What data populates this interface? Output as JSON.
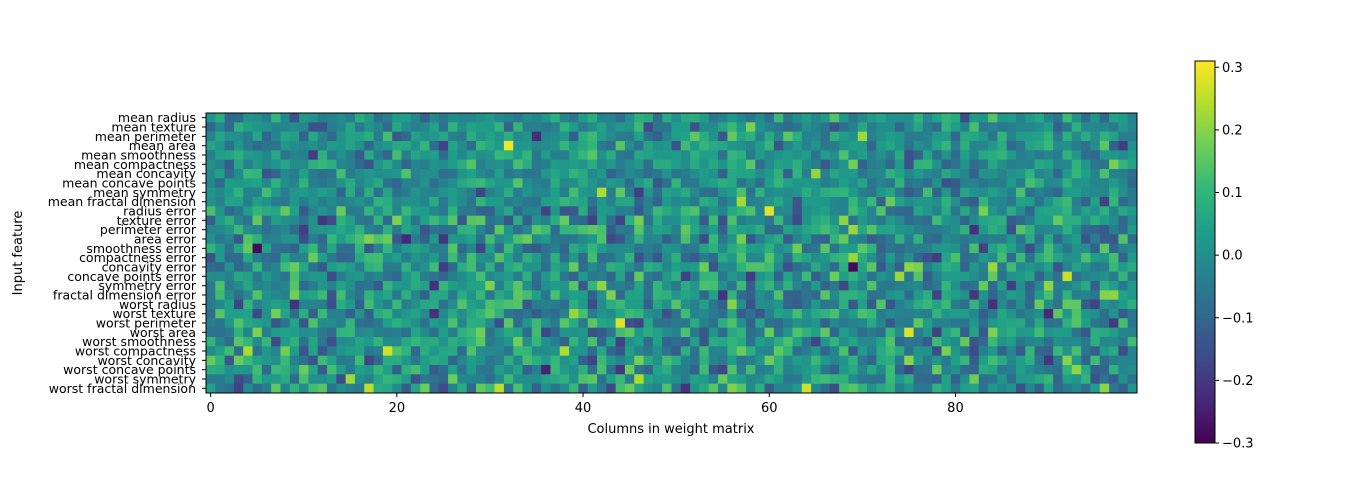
{
  "chart_data": {
    "type": "heatmap",
    "title": "",
    "xlabel": "Columns in weight matrix",
    "ylabel": "Input feature",
    "rows": [
      "mean radius",
      "mean texture",
      "mean perimeter",
      "mean area",
      "mean smoothness",
      "mean compactness",
      "mean concavity",
      "mean concave points",
      "mean symmetry",
      "mean fractal dimension",
      "radius error",
      "texture error",
      "perimeter error",
      "area error",
      "smoothness error",
      "compactness error",
      "concavity error",
      "concave points error",
      "symmetry error",
      "fractal dimension error",
      "worst radius",
      "worst texture",
      "worst perimeter",
      "worst area",
      "worst smoothness",
      "worst compactness",
      "worst concavity",
      "worst concave points",
      "worst symmetry",
      "worst fractal dimension"
    ],
    "n_columns": 100,
    "x_ticks": [
      0,
      20,
      40,
      60,
      80
    ],
    "x_tick_labels": [
      "0",
      "20",
      "40",
      "60",
      "80"
    ],
    "colormap": "viridis",
    "colorbar": {
      "vmin": -0.3,
      "vmax": 0.31,
      "ticks": [
        -0.3,
        -0.2,
        -0.1,
        0.0,
        0.1,
        0.2,
        0.3
      ],
      "tick_labels": [
        "−0.3",
        "−0.2",
        "−0.1",
        "0.0",
        "0.1",
        "0.2",
        "0.3"
      ]
    },
    "values_note": "approximate",
    "seed": 1234567
  }
}
